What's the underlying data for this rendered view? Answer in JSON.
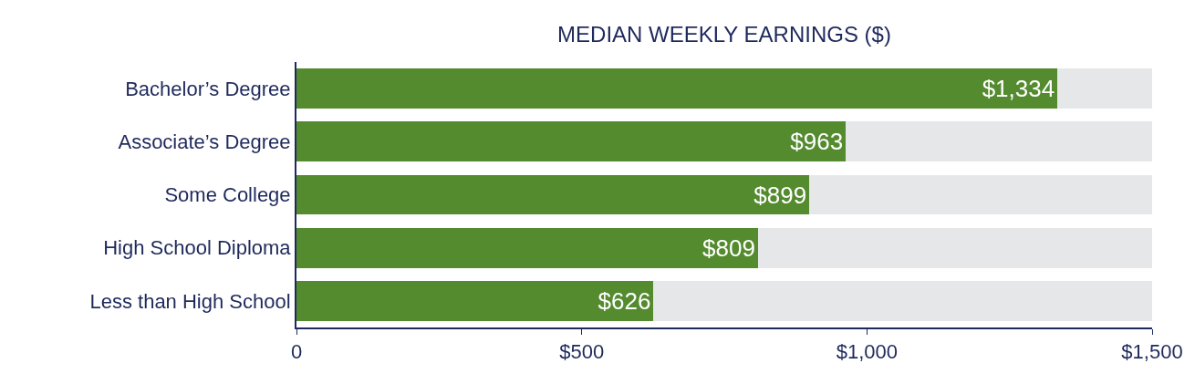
{
  "chart_data": {
    "type": "bar",
    "orientation": "horizontal",
    "stacked": true,
    "title": "MEDIAN WEEKLY EARNINGS ($)",
    "categories": [
      "Bachelor’s Degree",
      "Associate’s Degree",
      "Some College",
      "High School Diploma",
      "Less than High School"
    ],
    "series": [
      {
        "color": "#558b2f",
        "values": [
          1334,
          963,
          899,
          809,
          626
        ],
        "value_labels": [
          "$1,334",
          "$963",
          "$899",
          "$809",
          "$626"
        ]
      },
      {
        "color": "#e6e7e9",
        "values": [
          166,
          537,
          601,
          691,
          874
        ]
      }
    ],
    "xlim": [
      0,
      1500
    ],
    "xticks": [
      0,
      {
        "value": 500,
        "label": "$500"
      },
      {
        "value": 1000,
        "label": "$1,000"
      },
      {
        "value": 1500,
        "label": "$1,500"
      }
    ]
  }
}
